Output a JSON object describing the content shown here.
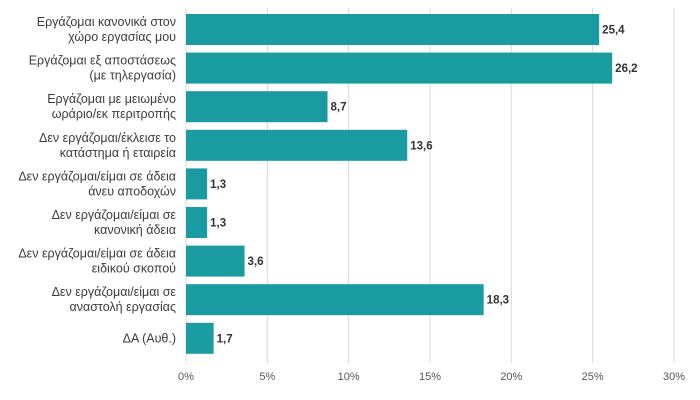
{
  "chart_data": {
    "type": "bar",
    "orientation": "horizontal",
    "categories": [
      [
        "Εργάζομαι κανονικά στον",
        "χώρο εργασίας μου"
      ],
      [
        "Εργάζομαι εξ αποστάσεως",
        "(με τηλεργασία)"
      ],
      [
        "Εργάζομαι με μειωμένο",
        "ωράριο/εκ περιτροπής"
      ],
      [
        "Δεν εργάζομαι/έκλεισε το",
        "κατάστημα ή εταιρεία"
      ],
      [
        "Δεν εργάζομαι/είμαι σε άδεια",
        "άνευ αποδοχών"
      ],
      [
        "Δεν εργάζομαι/είμαι σε",
        "κανονική άδεια"
      ],
      [
        "Δεν εργάζομαι/είμαι σε άδεια",
        "ειδικού σκοπού"
      ],
      [
        "Δεν εργάζομαι/είμαι σε",
        "αναστολή εργασίας"
      ],
      [
        "ΔΑ (Αυθ.)"
      ]
    ],
    "values": [
      25.4,
      26.2,
      8.7,
      13.6,
      1.3,
      1.3,
      3.6,
      18.3,
      1.7
    ],
    "value_labels": [
      "25,4",
      "26,2",
      "8,7",
      "13,6",
      "1,3",
      "1,3",
      "3,6",
      "18,3",
      "1,7"
    ],
    "x_ticks": [
      "0%",
      "5%",
      "10%",
      "15%",
      "20%",
      "25%",
      "30%"
    ],
    "xlim": [
      0,
      30
    ],
    "title": "",
    "xlabel": "",
    "ylabel": "",
    "grid": "vertical",
    "legend": "none",
    "bar_color": "#1a9ba1",
    "grid_color": "#d9d9d9"
  }
}
